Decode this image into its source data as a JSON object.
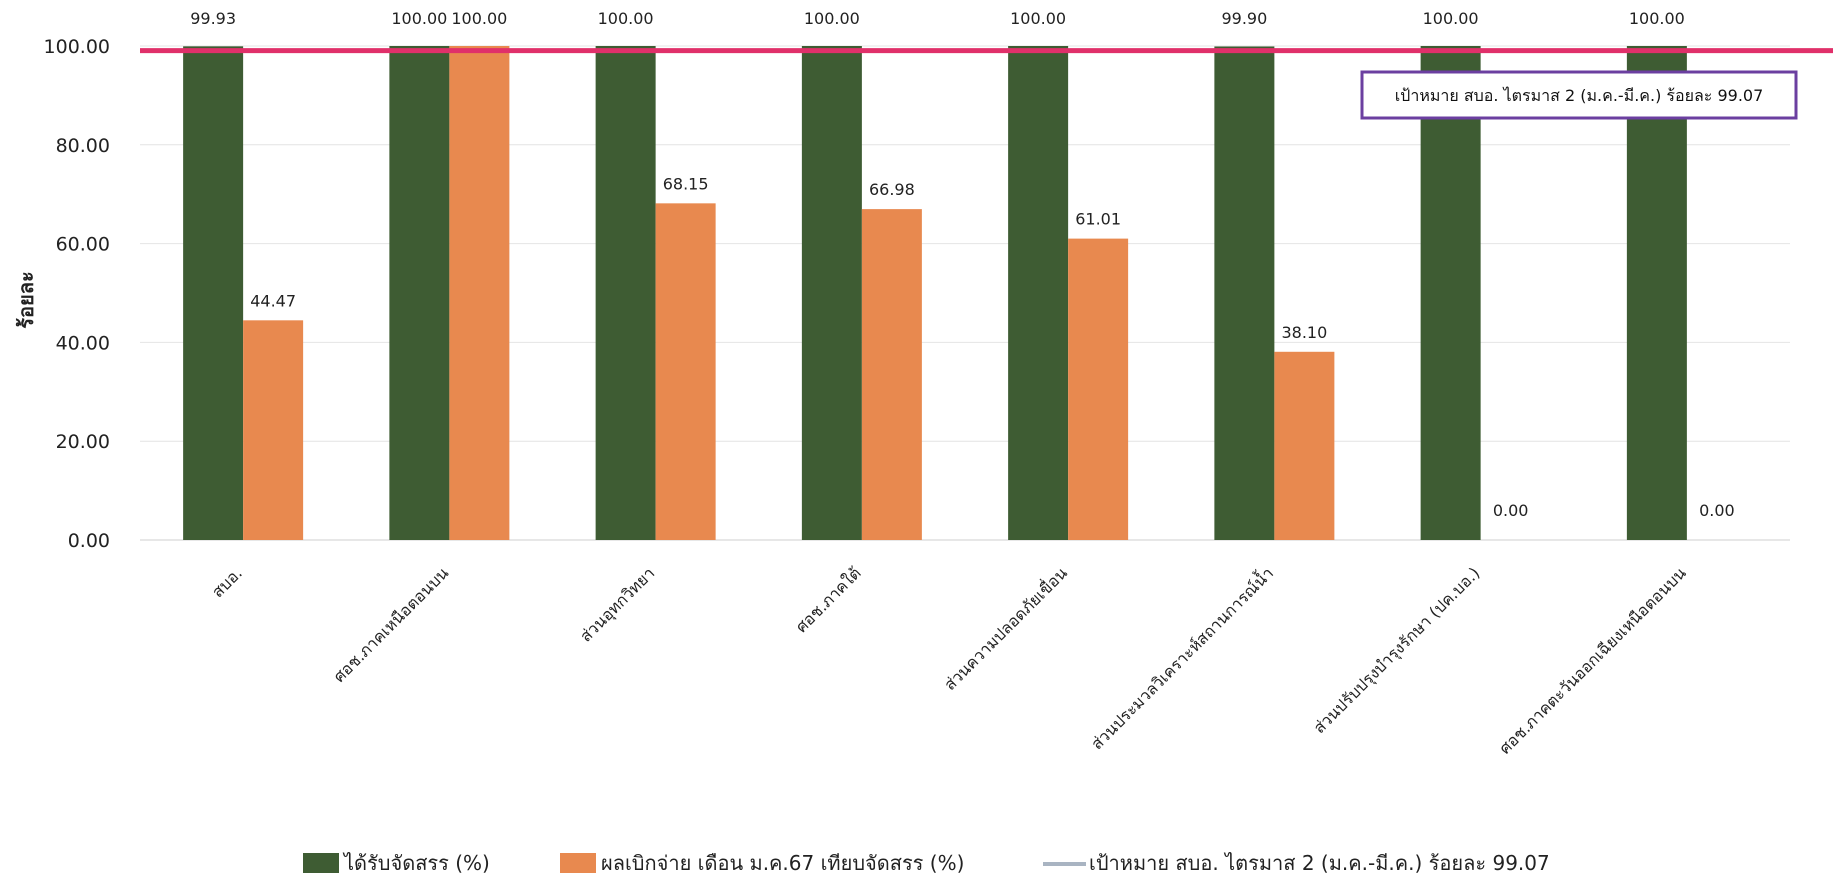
{
  "chart_data": {
    "type": "bar",
    "title": "",
    "xlabel": "",
    "ylabel": "ร้อยละ",
    "ylim": [
      0,
      100
    ],
    "yticks": [
      "0.00",
      "20.00",
      "40.00",
      "60.00",
      "80.00",
      "100.00"
    ],
    "categories": [
      "สบอ.",
      "ศอช.ภาคเหนือตอนบน",
      "ส่วนอุทกวิทยา",
      "ศอช.ภาคใต้",
      "ส่วนความปลอดภัยเขื่อน",
      "ส่วนประมวลวิเคราะห์สถานการณ์น้ำ",
      "ส่วนปรับปรุงบำรุงรักษา (ปค.บอ.)",
      "ศอช.ภาคตะวันออกเฉียงเหนือตอนบน"
    ],
    "series": [
      {
        "name": "ได้รับจัดสรร (%)",
        "color": "#3e5c33",
        "values": [
          99.93,
          100.0,
          100.0,
          100.0,
          100.0,
          99.9,
          100.0,
          100.0
        ],
        "labels": [
          "99.93",
          "100.00",
          "100.00",
          "100.00",
          "100.00",
          "99.90",
          "100.00",
          "100.00"
        ]
      },
      {
        "name": "ผลเบิกจ่าย เดือน ม.ค.67 เทียบจัดสรร (%)",
        "color": "#e8894f",
        "values": [
          44.47,
          100.0,
          68.15,
          66.98,
          61.01,
          38.1,
          0.0,
          0.0
        ],
        "labels": [
          "44.47",
          "100.00",
          "68.15",
          "66.98",
          "61.01",
          "38.10",
          "0.00",
          "0.00"
        ]
      }
    ],
    "target_line": {
      "name": "เป้าหมาย สบอ. ไตรมาส 2 (ม.ค.-มี.ค.) ร้อยละ 99.07",
      "value": 99.07,
      "color": "#e0306a",
      "legend_color": "#a9b4c2"
    },
    "annotation": {
      "text": "เป้าหมาย สบอ. ไตรมาส 2 (ม.ค.-มี.ค.) ร้อยละ 99.07",
      "border_color": "#6b3fa0"
    },
    "grid": true,
    "legend": "bottom"
  }
}
